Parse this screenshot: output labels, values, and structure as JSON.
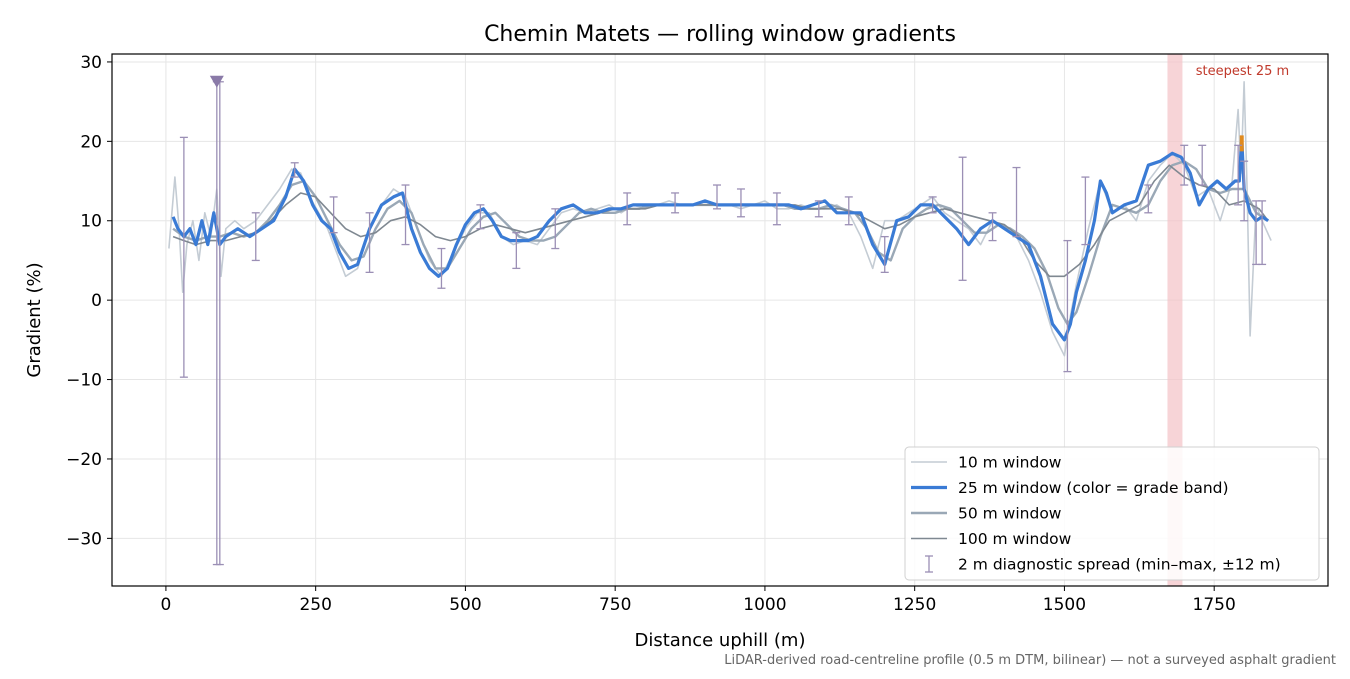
{
  "chart_data": {
    "type": "line",
    "title": "Chemin Matets — rolling window gradients",
    "xlabel": "Distance uphill (m)",
    "ylabel": "Gradient (%)",
    "footnote": "LiDAR-derived road-centreline profile (0.5 m DTM, bilinear) — not a surveyed asphalt gradient",
    "xlim": [
      -90,
      1940
    ],
    "ylim": [
      -36,
      31
    ],
    "xticks": [
      0,
      250,
      500,
      750,
      1000,
      1250,
      1500,
      1750
    ],
    "yticks": [
      30,
      20,
      10,
      0,
      -10,
      -20,
      -30
    ],
    "xtick_labels": [
      "0",
      "250",
      "500",
      "750",
      "1000",
      "1250",
      "1500",
      "1750"
    ],
    "ytick_labels": [
      "30",
      "20",
      "10",
      "0",
      "−10",
      "−20",
      "−30"
    ],
    "grid": true,
    "legend_position": "lower-right",
    "colors": {
      "w10": "#c4ccd4",
      "w25": "#3a7bd5",
      "w25_peak": "#e08a1e",
      "w50": "#9aa8b6",
      "w100": "#7f8891",
      "spread": "#9b8fb5",
      "highlight": "#f3c2c6",
      "highlight_text": "#c0392b"
    },
    "highlight_band": {
      "x_start": 1672,
      "x_end": 1697,
      "label": "steepest 25 m"
    },
    "marker": {
      "x": 85,
      "y": 27.5,
      "shape": "triangle-down"
    },
    "legend": [
      {
        "key": "w10",
        "label": "10 m window"
      },
      {
        "key": "w25",
        "label": "25 m window (color = grade band)"
      },
      {
        "key": "w50",
        "label": "50 m window"
      },
      {
        "key": "w100",
        "label": "100 m window"
      },
      {
        "key": "spread",
        "label": "2 m diagnostic spread (min–max, ±12 m)"
      }
    ],
    "series": [
      {
        "key": "w10",
        "name": "10 m window",
        "x": [
          5,
          15,
          22,
          28,
          35,
          45,
          55,
          65,
          75,
          85,
          92,
          100,
          115,
          130,
          150,
          170,
          190,
          210,
          225,
          240,
          255,
          270,
          285,
          300,
          320,
          340,
          360,
          380,
          400,
          420,
          440,
          460,
          480,
          500,
          520,
          540,
          560,
          580,
          600,
          620,
          640,
          660,
          680,
          700,
          720,
          740,
          760,
          780,
          800,
          820,
          840,
          860,
          880,
          900,
          920,
          940,
          960,
          980,
          1000,
          1020,
          1040,
          1060,
          1080,
          1100,
          1120,
          1140,
          1160,
          1180,
          1200,
          1220,
          1240,
          1260,
          1280,
          1300,
          1320,
          1340,
          1360,
          1380,
          1400,
          1420,
          1440,
          1460,
          1480,
          1500,
          1510,
          1520,
          1540,
          1560,
          1580,
          1600,
          1620,
          1640,
          1660,
          1680,
          1700,
          1720,
          1740,
          1760,
          1780,
          1790,
          1795,
          1800,
          1805,
          1810,
          1820,
          1830,
          1845
        ],
        "values": [
          6.5,
          15.5,
          9,
          1,
          7,
          10,
          5,
          11,
          8,
          14,
          3,
          9,
          10,
          9,
          10,
          12,
          14,
          16.5,
          16,
          13,
          11,
          9,
          6,
          3,
          4,
          9,
          12,
          14,
          13,
          9,
          5,
          3,
          6,
          9,
          11,
          11,
          8,
          7,
          7.5,
          7,
          9,
          11,
          11.5,
          11,
          11.5,
          12,
          11,
          12,
          11.5,
          12,
          12.5,
          12,
          12,
          12.5,
          12,
          12,
          11.5,
          12,
          12.5,
          11.5,
          11.5,
          12,
          11.5,
          11.5,
          12,
          11,
          8,
          4,
          10,
          10,
          11,
          12,
          13,
          11,
          10,
          9,
          7,
          10,
          9,
          8,
          5,
          1,
          -4,
          -7,
          -2,
          2,
          9,
          15,
          11,
          12,
          10,
          15,
          17,
          18.5,
          17,
          13,
          14,
          10,
          15,
          24,
          16,
          27.5,
          14,
          -4.5,
          12,
          10,
          7.5
        ]
      },
      {
        "key": "w25",
        "name": "25 m window (color = grade band)",
        "x": [
          12,
          20,
          30,
          40,
          50,
          60,
          70,
          80,
          90,
          100,
          120,
          140,
          160,
          180,
          200,
          215,
          230,
          245,
          260,
          275,
          290,
          305,
          320,
          340,
          360,
          380,
          395,
          410,
          425,
          440,
          455,
          470,
          485,
          500,
          515,
          530,
          545,
          560,
          575,
          590,
          605,
          620,
          640,
          660,
          680,
          700,
          720,
          740,
          760,
          780,
          800,
          820,
          840,
          860,
          880,
          900,
          920,
          940,
          960,
          980,
          1000,
          1020,
          1040,
          1060,
          1080,
          1100,
          1120,
          1140,
          1160,
          1180,
          1200,
          1220,
          1240,
          1260,
          1280,
          1300,
          1320,
          1340,
          1360,
          1380,
          1400,
          1420,
          1440,
          1460,
          1480,
          1500,
          1510,
          1520,
          1535,
          1550,
          1560,
          1570,
          1580,
          1600,
          1620,
          1640,
          1660,
          1680,
          1695,
          1710,
          1725,
          1740,
          1755,
          1770,
          1785,
          1792,
          1796,
          1800,
          1810,
          1820,
          1830,
          1840
        ],
        "values": [
          10.5,
          9,
          8,
          9,
          7,
          10,
          7,
          11,
          7,
          8,
          9,
          8,
          9,
          10,
          13,
          16.5,
          15,
          12,
          10,
          9,
          6,
          4,
          4.5,
          9,
          12,
          13,
          13.5,
          9,
          6,
          4,
          3,
          4,
          7,
          9.5,
          11,
          11.5,
          10,
          8,
          7.5,
          7.5,
          7.5,
          8,
          10,
          11.5,
          12,
          11,
          11,
          11.5,
          11.5,
          12,
          12,
          12,
          12,
          12,
          12,
          12.5,
          12,
          12,
          12,
          12,
          12,
          12,
          12,
          11.5,
          12,
          12.5,
          11,
          11,
          11,
          7,
          4.5,
          10,
          10.5,
          12,
          12,
          10.5,
          9,
          7,
          9,
          10,
          9,
          8,
          7,
          3,
          -3,
          -5,
          -3,
          1,
          5,
          10,
          15,
          13.5,
          11,
          12,
          12.5,
          17,
          17.5,
          18.5,
          18,
          16,
          12,
          14,
          15,
          14,
          15,
          15,
          20.5,
          14,
          11,
          10,
          10.5,
          10
        ]
      },
      {
        "key": "w50",
        "name": "50 m window",
        "x": [
          12,
          30,
          50,
          70,
          90,
          110,
          130,
          150,
          170,
          190,
          210,
          230,
          250,
          270,
          290,
          310,
          330,
          350,
          370,
          390,
          410,
          430,
          450,
          470,
          490,
          510,
          530,
          550,
          570,
          590,
          610,
          630,
          650,
          670,
          690,
          710,
          730,
          750,
          770,
          790,
          810,
          830,
          850,
          870,
          890,
          910,
          930,
          950,
          970,
          990,
          1010,
          1030,
          1050,
          1070,
          1090,
          1110,
          1130,
          1150,
          1170,
          1190,
          1210,
          1230,
          1250,
          1270,
          1290,
          1310,
          1330,
          1350,
          1370,
          1390,
          1410,
          1430,
          1450,
          1470,
          1490,
          1505,
          1520,
          1540,
          1560,
          1580,
          1600,
          1620,
          1640,
          1660,
          1680,
          1700,
          1720,
          1740,
          1760,
          1780,
          1800,
          1820,
          1840
        ],
        "values": [
          9,
          8,
          7.5,
          8,
          8,
          8.5,
          8,
          8.5,
          10,
          12,
          14.5,
          15,
          13,
          10,
          7,
          5,
          5.5,
          9,
          11.5,
          12.5,
          11,
          7,
          4,
          4,
          6.5,
          9,
          10.5,
          11,
          9.5,
          8,
          7.5,
          7.5,
          8,
          9.5,
          11,
          11.5,
          11,
          11,
          11.5,
          11.5,
          12,
          12,
          12,
          12,
          12,
          12,
          12,
          12,
          12,
          12,
          12,
          12,
          11.5,
          11.5,
          11.5,
          12,
          11.5,
          11,
          9,
          6,
          5,
          9,
          10.5,
          11.5,
          12,
          11.5,
          10,
          8.5,
          8.5,
          9.5,
          9,
          8,
          6.5,
          3.5,
          -1,
          -3,
          -1.5,
          3,
          8,
          12,
          11.5,
          11,
          12,
          15,
          17,
          17.5,
          16.5,
          14,
          13.5,
          14,
          14,
          11,
          10
        ]
      },
      {
        "key": "w100",
        "name": "100 m window",
        "x": [
          12,
          30,
          50,
          75,
          100,
          125,
          150,
          175,
          200,
          225,
          250,
          275,
          300,
          325,
          350,
          375,
          400,
          425,
          450,
          475,
          500,
          525,
          550,
          575,
          600,
          625,
          650,
          675,
          700,
          725,
          750,
          775,
          800,
          825,
          850,
          875,
          900,
          925,
          950,
          975,
          1000,
          1025,
          1050,
          1075,
          1100,
          1125,
          1150,
          1175,
          1200,
          1225,
          1250,
          1275,
          1300,
          1325,
          1350,
          1375,
          1400,
          1425,
          1450,
          1475,
          1500,
          1525,
          1550,
          1575,
          1600,
          1625,
          1650,
          1675,
          1700,
          1725,
          1750,
          1775,
          1800,
          1825,
          1840
        ],
        "values": [
          8,
          7.5,
          7,
          7.5,
          7.5,
          8,
          8.5,
          10,
          12,
          13.5,
          13,
          11,
          9,
          8,
          8.5,
          10,
          10.5,
          9.5,
          8,
          7.5,
          8,
          9,
          9.5,
          9,
          8.5,
          9,
          9.5,
          10,
          10.5,
          11,
          11.5,
          11.5,
          11.5,
          12,
          12,
          12,
          12,
          12,
          12,
          12,
          12,
          12,
          12,
          11.5,
          11.5,
          11.5,
          11,
          10,
          9,
          9.5,
          10.5,
          11,
          11.5,
          11,
          10.5,
          10,
          9.5,
          8,
          5,
          3,
          3,
          4.5,
          7,
          10,
          11,
          12,
          15,
          17,
          15.5,
          14.5,
          14,
          12,
          12.5,
          11.5,
          10
        ]
      }
    ],
    "spread_bars": {
      "x": [
        30,
        85,
        90,
        150,
        215,
        280,
        340,
        400,
        460,
        525,
        585,
        650,
        770,
        850,
        920,
        960,
        1020,
        1090,
        1140,
        1200,
        1280,
        1330,
        1380,
        1420,
        1505,
        1535,
        1640,
        1700,
        1730,
        1790,
        1800,
        1820,
        1830
      ],
      "low": [
        -9.7,
        -33.3,
        -33.3,
        5,
        15.5,
        8.5,
        3.5,
        7,
        1.5,
        9,
        4,
        6.5,
        9.5,
        11,
        11.5,
        10.5,
        9.5,
        10.5,
        9.5,
        3.5,
        11,
        2.5,
        7.5,
        8,
        -9,
        7,
        11,
        14.5,
        14.5,
        12,
        10,
        4.5,
        4.5
      ],
      "high": [
        20.5,
        27.5,
        27.5,
        11,
        17.3,
        13,
        11,
        14.5,
        6.5,
        12,
        8.5,
        11.5,
        13.5,
        13.5,
        14.5,
        14,
        13.5,
        12.5,
        13,
        8,
        13,
        18,
        11,
        16.7,
        7.5,
        15.5,
        14.5,
        19.5,
        19.5,
        19.5,
        17.5,
        12.5,
        12.5
      ]
    }
  }
}
